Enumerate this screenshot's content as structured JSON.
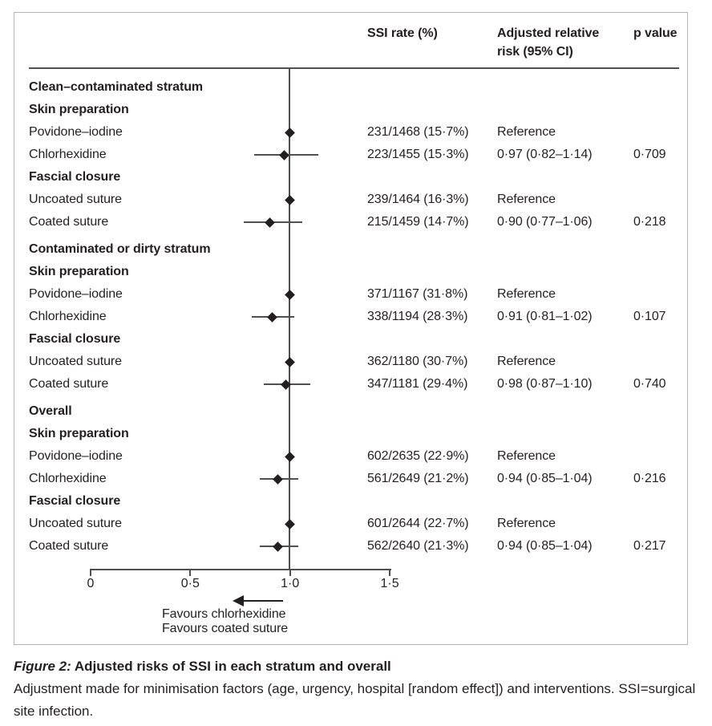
{
  "colors": {
    "border": "#dca4ad",
    "line": "#4f5052",
    "text": "#231f20",
    "marker": "#231f20"
  },
  "chart_data": {
    "type": "forest",
    "title": "Adjusted risks of SSI in each stratum and overall",
    "xlabel": "",
    "xlim": [
      0,
      1.5
    ],
    "reference_line": 1.0,
    "grid": false,
    "legend": false,
    "columns": {
      "ssi": "SSI rate (%)",
      "arr": "Adjusted relative risk (95% CI)",
      "p": "p value"
    },
    "x_ticks": [
      {
        "value": 0,
        "label": "0"
      },
      {
        "value": 0.5,
        "label": "0·5"
      },
      {
        "value": 1.0,
        "label": "1·0"
      },
      {
        "value": 1.5,
        "label": "1·5"
      }
    ],
    "rows": [
      {
        "type": "stratum",
        "label": "Clean–contaminated stratum"
      },
      {
        "type": "group",
        "label": "Skin preparation"
      },
      {
        "type": "item",
        "label": "Povidone–iodine",
        "ssi": "231/1468 (15·7%)",
        "rr": 1.0,
        "ci": null,
        "arr": "Reference",
        "p": ""
      },
      {
        "type": "item",
        "label": "Chlorhexidine",
        "ssi": "223/1455 (15·3%)",
        "rr": 0.97,
        "ci": [
          0.82,
          1.14
        ],
        "arr": "0·97 (0·82–1·14)",
        "p": "0·709"
      },
      {
        "type": "group",
        "label": "Fascial closure"
      },
      {
        "type": "item",
        "label": "Uncoated suture",
        "ssi": "239/1464 (16·3%)",
        "rr": 1.0,
        "ci": null,
        "arr": "Reference",
        "p": ""
      },
      {
        "type": "item",
        "label": "Coated suture",
        "ssi": "215/1459 (14·7%)",
        "rr": 0.9,
        "ci": [
          0.77,
          1.06
        ],
        "arr": "0·90 (0·77–1·06)",
        "p": "0·218"
      },
      {
        "type": "stratum",
        "label": "Contaminated or dirty stratum"
      },
      {
        "type": "group",
        "label": "Skin preparation"
      },
      {
        "type": "item",
        "label": "Povidone–iodine",
        "ssi": "371/1167 (31·8%)",
        "rr": 1.0,
        "ci": null,
        "arr": "Reference",
        "p": ""
      },
      {
        "type": "item",
        "label": "Chlorhexidine",
        "ssi": "338/1194 (28·3%)",
        "rr": 0.91,
        "ci": [
          0.81,
          1.02
        ],
        "arr": "0·91 (0·81–1·02)",
        "p": "0·107"
      },
      {
        "type": "group",
        "label": "Fascial closure"
      },
      {
        "type": "item",
        "label": "Uncoated suture",
        "ssi": "362/1180 (30·7%)",
        "rr": 1.0,
        "ci": null,
        "arr": "Reference",
        "p": ""
      },
      {
        "type": "item",
        "label": "Coated suture",
        "ssi": "347/1181 (29·4%)",
        "rr": 0.98,
        "ci": [
          0.87,
          1.1
        ],
        "arr": "0·98 (0·87–1·10)",
        "p": "0·740"
      },
      {
        "type": "stratum",
        "label": "Overall"
      },
      {
        "type": "group",
        "label": "Skin preparation"
      },
      {
        "type": "item",
        "label": "Povidone–iodine",
        "ssi": "602/2635 (22·9%)",
        "rr": 1.0,
        "ci": null,
        "arr": "Reference",
        "p": ""
      },
      {
        "type": "item",
        "label": "Chlorhexidine",
        "ssi": "561/2649 (21·2%)",
        "rr": 0.94,
        "ci": [
          0.85,
          1.04
        ],
        "arr": "0·94 (0·85–1·04)",
        "p": "0·216"
      },
      {
        "type": "group",
        "label": "Fascial closure"
      },
      {
        "type": "item",
        "label": "Uncoated suture",
        "ssi": "601/2644 (22·7%)",
        "rr": 1.0,
        "ci": null,
        "arr": "Reference",
        "p": ""
      },
      {
        "type": "item",
        "label": "Coated suture",
        "ssi": "562/2640 (21·3%)",
        "rr": 0.94,
        "ci": [
          0.85,
          1.04
        ],
        "arr": "0·94 (0·85–1·04)",
        "p": "0·217"
      }
    ],
    "favours": [
      "Favours chlorhexidine",
      "Favours coated suture"
    ],
    "favours_arrow_direction": "left"
  },
  "caption": {
    "label": "Figure 2:",
    "title": " Adjusted risks of SSI in each stratum and overall",
    "body": "Adjustment made for minimisation factors (age, urgency, hospital [random effect]) and interventions. SSI=surgical site infection."
  }
}
